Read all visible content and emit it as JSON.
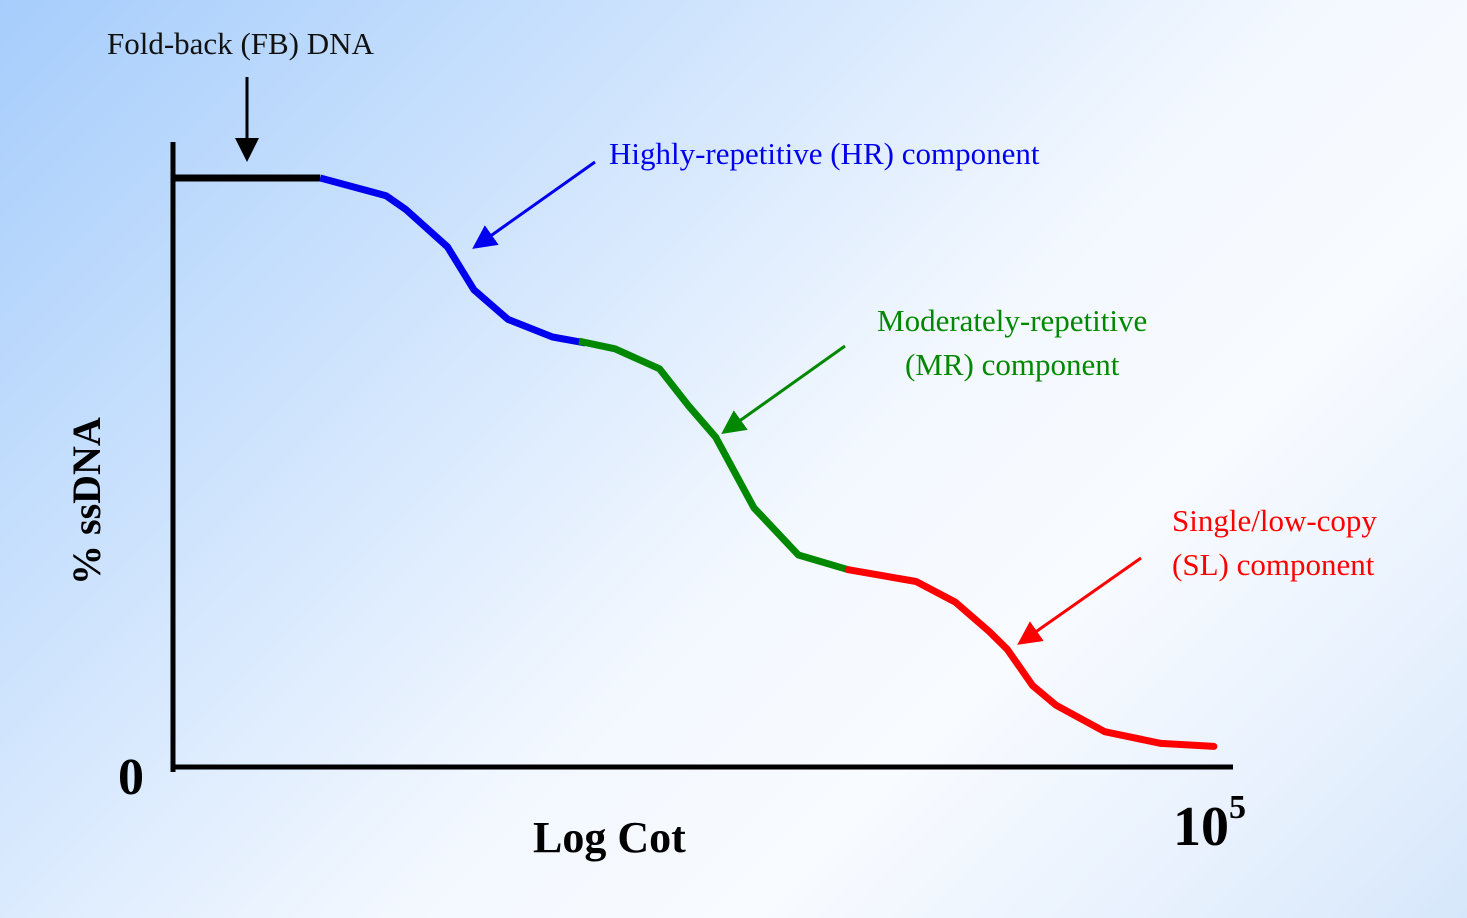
{
  "chart_data": {
    "type": "line",
    "title": "",
    "xlabel": "Log Cot",
    "ylabel": "% ssDNA",
    "y_min_label": "0",
    "x_max_label": {
      "base": "10",
      "exponent": "5"
    },
    "xlim": [
      0,
      100
    ],
    "ylim": [
      0,
      100
    ],
    "grid": false,
    "series": [
      {
        "name": "Fold-back (FB) DNA",
        "color": "#000000",
        "x": [
          0,
          13.9
        ],
        "y": [
          100,
          100
        ]
      },
      {
        "name": "Highly-repetitive (HR) component",
        "color": "#0000ee",
        "x": [
          13.9,
          20.1,
          22.0,
          25.9,
          28.4,
          31.6,
          35.8,
          38.9
        ],
        "y": [
          100,
          97.0,
          94.6,
          88.3,
          81.0,
          76.0,
          73.0,
          72.0
        ]
      },
      {
        "name": "Moderately-repetitive (MR) component",
        "color": "#008800",
        "x": [
          38.3,
          41.7,
          45.9,
          48.6,
          51.2,
          54.8,
          59.0,
          63.7
        ],
        "y": [
          72.3,
          71.0,
          67.6,
          61.4,
          56.0,
          44.0,
          36.0,
          33.5
        ]
      },
      {
        "name": "Single/low-copy (SL) component",
        "color": "#ff0000",
        "x": [
          63.7,
          70.1,
          73.8,
          77.0,
          78.7,
          81.1,
          83.3,
          87.9,
          93.2,
          98.2
        ],
        "y": [
          33.5,
          31.5,
          28.0,
          23.0,
          20.0,
          13.8,
          10.5,
          6.0,
          4.0,
          3.5
        ]
      }
    ]
  },
  "annotations": {
    "fb": "Fold-back (FB) DNA",
    "hr": "Highly-repetitive (HR) component",
    "mr_line1": "Moderately-repetitive",
    "mr_line2": "(MR) component",
    "sl_line1": "Single/low-copy",
    "sl_line2": "(SL) component"
  },
  "colors": {
    "fb": "#000000",
    "hr": "#0000ee",
    "mr": "#008800",
    "sl": "#ff0000"
  }
}
